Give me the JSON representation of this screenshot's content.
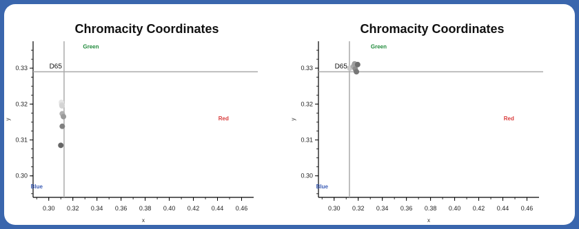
{
  "chart_data": [
    {
      "type": "scatter",
      "title": "Chromacity Coordinates",
      "xlabel": "x",
      "ylabel": "y",
      "xlim": [
        0.287,
        0.47
      ],
      "ylim": [
        0.294,
        0.3375
      ],
      "xticks": [
        "0.30",
        "0.32",
        "0.34",
        "0.36",
        "0.38",
        "0.40",
        "0.42",
        "0.44",
        "0.46"
      ],
      "xtick_values": [
        0.3,
        0.32,
        0.34,
        0.36,
        0.38,
        0.4,
        0.42,
        0.44,
        0.46
      ],
      "yticks": [
        "0.30",
        "0.31",
        "0.32",
        "0.33"
      ],
      "ytick_values": [
        0.3,
        0.31,
        0.32,
        0.33
      ],
      "grid": false,
      "reference": {
        "label": "D65",
        "x": 0.3127,
        "y": 0.329
      },
      "annotations": [
        {
          "text": "Green",
          "x": 0.335,
          "y": 0.3355,
          "color": "#1f8a3a"
        },
        {
          "text": "Red",
          "x": 0.445,
          "y": 0.3155,
          "color": "#d93b3b"
        },
        {
          "text": "Blue",
          "x": 0.29,
          "y": 0.2965,
          "color": "#3a5bb5"
        }
      ],
      "points": [
        {
          "x": 0.3105,
          "y": 0.3205,
          "color": "#e6e6e6"
        },
        {
          "x": 0.3108,
          "y": 0.3198,
          "color": "#dadada"
        },
        {
          "x": 0.311,
          "y": 0.3195,
          "color": "#d4d4d4"
        },
        {
          "x": 0.3112,
          "y": 0.3173,
          "color": "#b0b0b0"
        },
        {
          "x": 0.3122,
          "y": 0.3165,
          "color": "#9a9a9a"
        },
        {
          "x": 0.3112,
          "y": 0.3138,
          "color": "#808080"
        },
        {
          "x": 0.31,
          "y": 0.3085,
          "color": "#666666"
        }
      ]
    },
    {
      "type": "scatter",
      "title": "Chromacity Coordinates",
      "xlabel": "x",
      "ylabel": "y",
      "xlim": [
        0.287,
        0.47
      ],
      "ylim": [
        0.294,
        0.3375
      ],
      "xticks": [
        "0.30",
        "0.32",
        "0.34",
        "0.36",
        "0.38",
        "0.40",
        "0.42",
        "0.44",
        "0.46"
      ],
      "xtick_values": [
        0.3,
        0.32,
        0.34,
        0.36,
        0.38,
        0.4,
        0.42,
        0.44,
        0.46
      ],
      "yticks": [
        "0.30",
        "0.31",
        "0.32",
        "0.33"
      ],
      "ytick_values": [
        0.3,
        0.31,
        0.32,
        0.33
      ],
      "grid": false,
      "reference": {
        "label": "D65",
        "x": 0.3127,
        "y": 0.329
      },
      "annotations": [
        {
          "text": "Green",
          "x": 0.337,
          "y": 0.3355,
          "color": "#1f8a3a"
        },
        {
          "text": "Red",
          "x": 0.445,
          "y": 0.3155,
          "color": "#d93b3b"
        },
        {
          "text": "Blue",
          "x": 0.29,
          "y": 0.2965,
          "color": "#3a5bb5"
        }
      ],
      "points": [
        {
          "x": 0.313,
          "y": 0.33,
          "color": "#c9c9c9"
        },
        {
          "x": 0.316,
          "y": 0.3305,
          "color": "#aaaaaa"
        },
        {
          "x": 0.3175,
          "y": 0.3298,
          "color": "#8c8c8c"
        },
        {
          "x": 0.3185,
          "y": 0.329,
          "color": "#777777"
        },
        {
          "x": 0.317,
          "y": 0.3312,
          "color": "#9e9e9e"
        },
        {
          "x": 0.3195,
          "y": 0.331,
          "color": "#6e6e6e"
        }
      ]
    }
  ]
}
